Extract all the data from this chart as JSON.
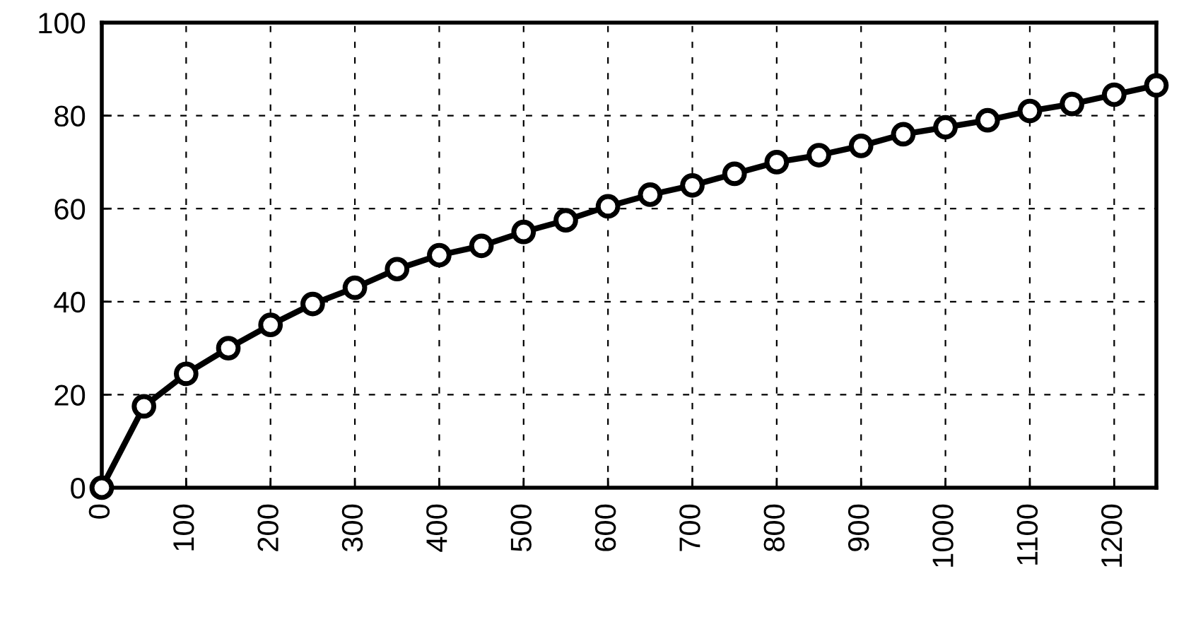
{
  "chart_data": {
    "type": "line",
    "x": [
      0,
      50,
      100,
      150,
      200,
      250,
      300,
      350,
      400,
      450,
      500,
      550,
      600,
      650,
      700,
      750,
      800,
      850,
      900,
      950,
      1000,
      1050,
      1100,
      1150,
      1200,
      1250
    ],
    "series": [
      {
        "color": "#000000",
        "values": [
          0,
          17.5,
          24.5,
          30,
          35,
          39.5,
          43,
          47,
          50,
          52,
          55,
          57.5,
          60.5,
          63,
          65,
          67.5,
          70,
          71.5,
          73.5,
          76,
          77.5,
          79,
          81,
          82.5,
          84.5,
          86.5
        ]
      }
    ],
    "xlim": [
      0,
      1250
    ],
    "xticks": [
      0,
      100,
      200,
      300,
      400,
      500,
      600,
      700,
      800,
      900,
      1000,
      1100,
      1200
    ],
    "ylim": [
      0,
      100
    ],
    "yticks": [
      0,
      20,
      40,
      60,
      80,
      100
    ],
    "grid": true,
    "marker": "circle",
    "line_style": "solid"
  }
}
